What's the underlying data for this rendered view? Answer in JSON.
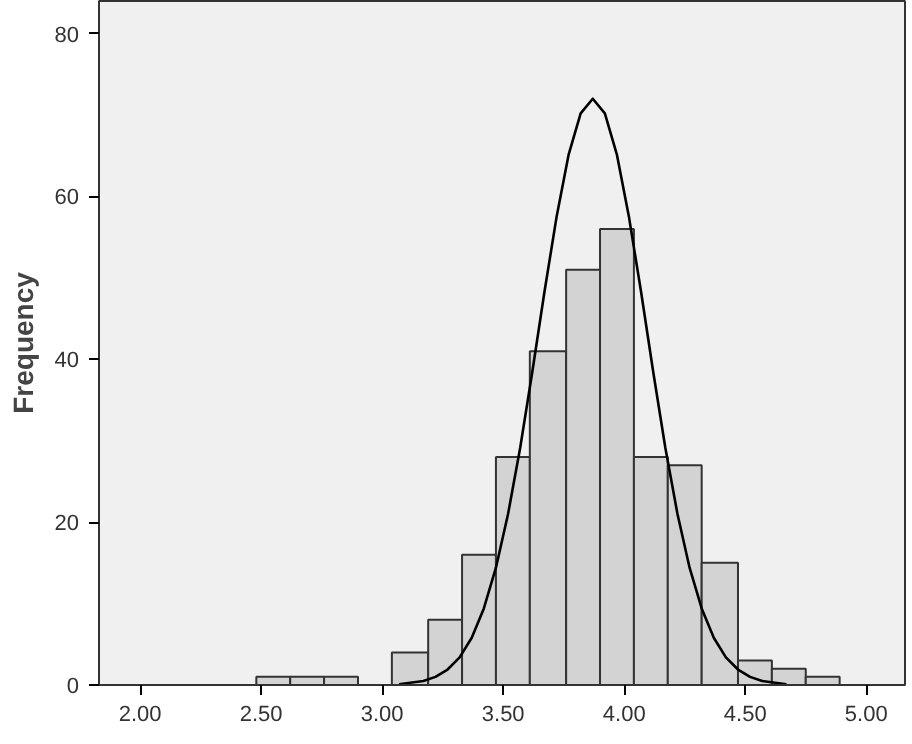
{
  "chart_data": {
    "type": "histogram",
    "ylabel": "Frequency",
    "bins": [
      2.48,
      2.62,
      2.76,
      2.9,
      3.04,
      3.19,
      3.33,
      3.47,
      3.61,
      3.76,
      3.9,
      4.04,
      4.18,
      4.32,
      4.47,
      4.61,
      4.75,
      4.89
    ],
    "values": [
      1,
      1,
      1,
      0,
      4,
      8,
      16,
      28,
      41,
      51,
      56,
      28,
      27,
      15,
      3,
      2,
      1
    ],
    "color": "#d3d3d3",
    "series": [
      {
        "type": "line",
        "color": "#000000",
        "x": [
          3.07,
          3.17,
          3.22,
          3.27,
          3.32,
          3.37,
          3.42,
          3.47,
          3.52,
          3.57,
          3.62,
          3.67,
          3.72,
          3.77,
          3.82,
          3.87,
          3.92,
          3.97,
          4.02,
          4.07,
          4.12,
          4.17,
          4.22,
          4.27,
          4.32,
          4.37,
          4.42,
          4.47,
          4.52,
          4.57,
          4.67
        ],
        "values": [
          0.1,
          0.5,
          1.0,
          1.9,
          3.4,
          5.8,
          9.4,
          14.4,
          21.0,
          29.1,
          38.4,
          48.2,
          57.4,
          65.1,
          70.2,
          72,
          70.2,
          65.1,
          57.4,
          48.2,
          38.4,
          29.1,
          21.0,
          14.4,
          9.4,
          5.8,
          3.4,
          1.9,
          1.0,
          0.5,
          0.1
        ]
      }
    ],
    "xlim": [
      1.83,
      5.16
    ],
    "ylim": [
      0,
      84
    ],
    "xticks": [
      {
        "value": 2,
        "label": "2.00"
      },
      {
        "value": 2.5,
        "label": "2.50"
      },
      {
        "value": 3,
        "label": "3.00"
      },
      {
        "value": 3.5,
        "label": "3.50"
      },
      {
        "value": 4,
        "label": "4.00"
      },
      {
        "value": 4.5,
        "label": "4.50"
      },
      {
        "value": 5,
        "label": "5.00"
      }
    ],
    "yticks": [
      0,
      20,
      40,
      60,
      80
    ],
    "grid": false
  }
}
